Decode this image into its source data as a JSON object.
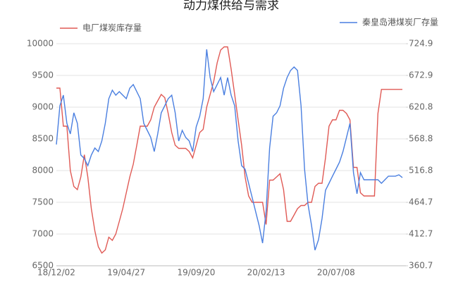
{
  "chart_data": {
    "type": "line",
    "title": "动力煤供给与需求",
    "categories": [
      "18/12/02",
      null,
      null,
      null,
      null,
      null,
      null,
      null,
      null,
      null,
      null,
      null,
      null,
      null,
      null,
      null,
      null,
      null,
      null,
      null,
      "19/04/27",
      null,
      null,
      null,
      null,
      null,
      null,
      null,
      null,
      null,
      null,
      null,
      null,
      null,
      null,
      null,
      null,
      null,
      null,
      null,
      "19/09/20",
      null,
      null,
      null,
      null,
      null,
      null,
      null,
      null,
      null,
      null,
      null,
      null,
      null,
      null,
      null,
      null,
      null,
      null,
      null,
      "20/02/13",
      null,
      null,
      null,
      null,
      null,
      null,
      null,
      null,
      null,
      null,
      null,
      null,
      null,
      null,
      null,
      null,
      null,
      null,
      null,
      "20/07/08",
      null,
      null,
      null,
      null,
      null,
      null,
      null,
      null,
      null,
      null,
      null,
      null,
      null,
      null,
      null,
      null,
      null,
      null,
      null
    ],
    "series": [
      {
        "name": "电厂煤炭库存量",
        "color": "#e05a55",
        "axis": "y",
        "values": [
          9300,
          9300,
          8700,
          8700,
          8000,
          7750,
          7700,
          7900,
          8250,
          7900,
          7400,
          7050,
          6800,
          6700,
          6750,
          6950,
          6900,
          7000,
          7200,
          7400,
          7650,
          7900,
          8100,
          8400,
          8700,
          8700,
          8700,
          8800,
          9000,
          9100,
          9200,
          9150,
          8900,
          8600,
          8400,
          8350,
          8350,
          8350,
          8300,
          8200,
          8400,
          8600,
          8650,
          9000,
          9200,
          9400,
          9700,
          9900,
          9950,
          9950,
          9600,
          9200,
          8800,
          8400,
          7900,
          7600,
          7500,
          7500,
          7500,
          7500,
          7150,
          7850,
          7850,
          7900,
          7950,
          7700,
          7200,
          7200,
          7300,
          7400,
          7450,
          7450,
          7500,
          7500,
          7750,
          7800,
          7800,
          8200,
          8700,
          8800,
          8800,
          8950,
          8950,
          8900,
          8800,
          8050,
          8050,
          7650,
          7600,
          7600,
          7600,
          7600,
          8900,
          9280,
          9280,
          9280,
          9280,
          9280,
          9280,
          9280
        ]
      },
      {
        "name": "秦皇岛港煤炭厂存量",
        "color": "#4a7fe0",
        "axis": "y2",
        "values": [
          559.6,
          623.2,
          640.5,
          594.3,
          576.9,
          611.6,
          594.3,
          542.3,
          536.5,
          524.9,
          542.3,
          553.8,
          548.0,
          565.4,
          594.3,
          634.7,
          648.6,
          640.5,
          646.3,
          640.5,
          634.7,
          652.1,
          657.9,
          646.3,
          634.7,
          594.3,
          582.7,
          571.2,
          548.0,
          576.9,
          611.6,
          623.2,
          634.7,
          640.5,
          611.6,
          565.4,
          582.7,
          571.2,
          565.4,
          548.0,
          588.5,
          605.8,
          634.7,
          715.7,
          669.4,
          646.3,
          657.9,
          669.4,
          640.5,
          669.4,
          640.5,
          623.2,
          565.4,
          524.9,
          519.1,
          496.0,
          472.9,
          449.8,
          426.7,
          397.8,
          449.8,
          553.8,
          605.8,
          611.6,
          623.2,
          652.1,
          669.4,
          681.0,
          686.8,
          681.0,
          623.2,
          519.1,
          461.3,
          426.7,
          386.2,
          403.5,
          438.2,
          484.5,
          496.0,
          507.6,
          519.1,
          530.7,
          548.0,
          571.2,
          594.3,
          513.4,
          478.7,
          513.4,
          501.8,
          501.8,
          501.8,
          501.8,
          501.8,
          496.0,
          501.8,
          507.6,
          507.6,
          507.6,
          509.9,
          505.3
        ]
      }
    ],
    "ylim": [
      6500,
      10000
    ],
    "yticks": [
      6500,
      7000,
      7500,
      8000,
      8500,
      9000,
      9500,
      10000
    ],
    "y2lim": [
      360.7,
      724.9
    ],
    "y2ticks": [
      360.7,
      412.7,
      464.7,
      516.8,
      568.8,
      620.8,
      672.9,
      724.9
    ],
    "grid": true
  }
}
